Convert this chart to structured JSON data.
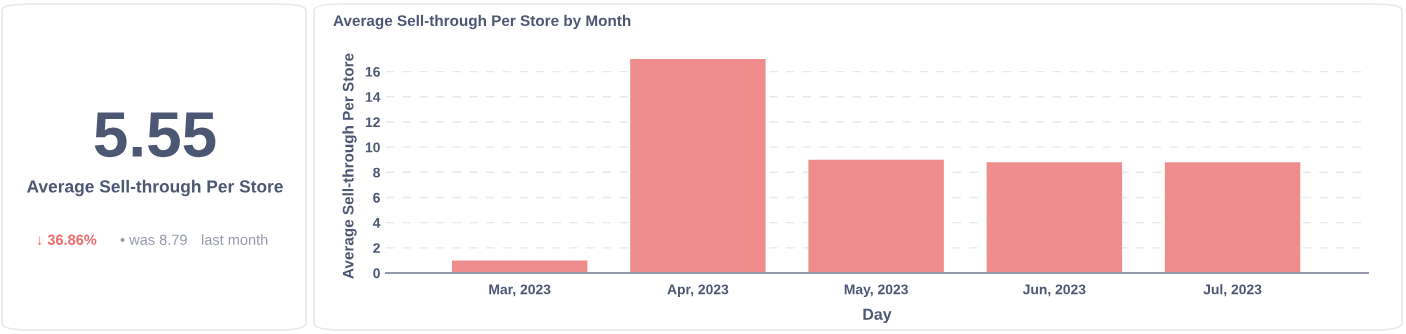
{
  "chart_data": [
    {
      "type": "other",
      "annotations": [
        "5.55",
        "Average Sell-through Per Store",
        "↓ 36.86%",
        "• was 8.79",
        "last month"
      ]
    },
    {
      "type": "bar",
      "title": "Average Sell-through Per Store by Month",
      "xlabel": "Day",
      "ylabel": "Average Sell-through Per Store",
      "categories": [
        "Mar, 2023",
        "Apr, 2023",
        "May, 2023",
        "Jun, 2023",
        "Jul, 2023"
      ],
      "values": [
        1.0,
        17.0,
        9.0,
        8.8,
        8.8
      ],
      "color": "#ef8c8c",
      "ylim": [
        0,
        17
      ],
      "yticks": [
        0,
        2,
        4,
        6,
        8,
        10,
        12,
        14,
        16
      ],
      "grid": "y",
      "legend": false
    }
  ]
}
